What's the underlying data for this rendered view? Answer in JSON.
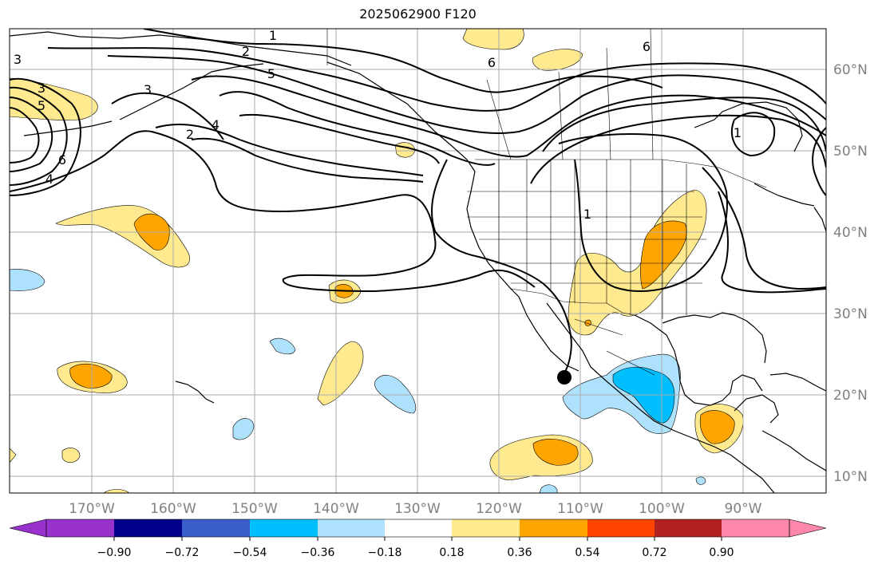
{
  "title": "2025062900 F120",
  "axes": {
    "lon_labels": [
      "170°W",
      "160°W",
      "150°W",
      "140°W",
      "130°W",
      "120°W",
      "110°W",
      "100°W",
      "90°W"
    ],
    "lat_labels": [
      "60°N",
      "50°N",
      "40°N",
      "30°N",
      "20°N",
      "10°N"
    ]
  },
  "contours": {
    "labels": [
      "1",
      "2",
      "3",
      "3",
      "5",
      "6",
      "4",
      "2",
      "4",
      "3",
      "5",
      "6",
      "6",
      "1",
      "1"
    ]
  },
  "colorbar": {
    "colors": [
      "#9932cc",
      "#00008b",
      "#3a5fcd",
      "#00bfff",
      "#aee2fc",
      "#ffffff",
      "#ffea8f",
      "#ffa500",
      "#ff4500",
      "#b22222",
      "#ff88aa"
    ],
    "tick_labels": [
      "−0.90",
      "−0.72",
      "−0.54",
      "−0.36",
      "−0.18",
      "0.18",
      "0.36",
      "0.54",
      "0.72",
      "0.90"
    ]
  },
  "legend_colors": {
    "pos_low": "#ffea8f",
    "pos_mid": "#ffa500",
    "neg_low": "#aee2fc",
    "neg_mid": "#00bfff",
    "grid": "#a9a9a9",
    "contour": "#000000"
  },
  "marker": {
    "name": "location-dot",
    "color": "#000000"
  }
}
